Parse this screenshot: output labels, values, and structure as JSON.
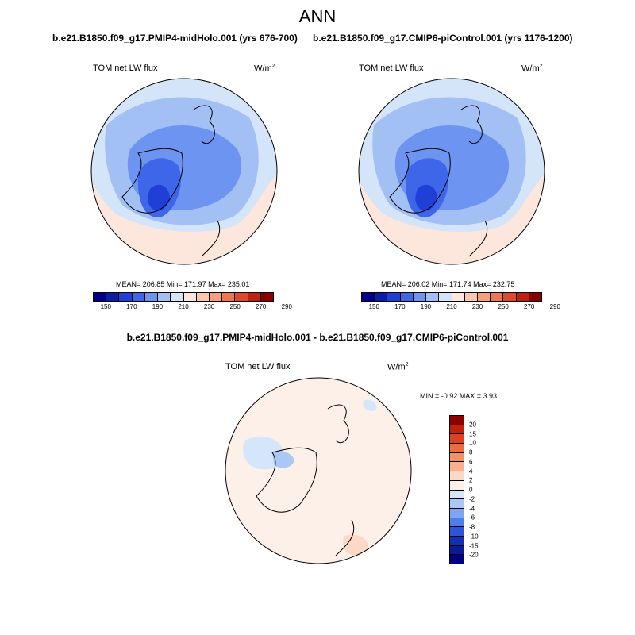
{
  "title": "ANN",
  "panels": {
    "left": {
      "run_title": "b.e21.B1850.f09_g17.PMIP4-midHolo.001 (yrs 676-700)",
      "variable": "TOM net LW flux",
      "units": "W/m",
      "units_exp": "2",
      "stats": "MEAN= 206.85   Min= 171.97   Max= 235.01",
      "mean": 206.85,
      "min": 171.97,
      "max": 235.01
    },
    "right": {
      "run_title": "b.e21.B1850.f09_g17.CMIP6-piControl.001 (yrs 1176-1200)",
      "variable": "TOM net LW flux",
      "units": "W/m",
      "units_exp": "2",
      "stats": "MEAN= 206.02   Min= 171.74   Max= 232.75",
      "mean": 206.02,
      "min": 171.74,
      "max": 232.75
    },
    "diff": {
      "run_title": "b.e21.B1850.f09_g17.PMIP4-midHolo.001 - b.e21.B1850.f09_g17.CMIP6-piControl.001",
      "variable": "TOM net LW flux",
      "units": "W/m",
      "units_exp": "2",
      "stats": "MIN =  -0.92 MAX =   3.93",
      "min": -0.92,
      "max": 3.93
    }
  },
  "colorbar_abs": {
    "colors": [
      "#00008b",
      "#0a1ea6",
      "#1f3fd6",
      "#3e66e8",
      "#6d94f0",
      "#a3c0f5",
      "#d4e5fa",
      "#fde7dc",
      "#fbc6ad",
      "#f79f7c",
      "#f07650",
      "#e04a2a",
      "#c0210f",
      "#8b0000"
    ],
    "tick_labels": [
      "150",
      "170",
      "190",
      "210",
      "230",
      "250",
      "270",
      "290"
    ]
  },
  "colorbar_diff": {
    "colors": [
      "#8b0000",
      "#c0210f",
      "#e0401f",
      "#f06a40",
      "#f58f65",
      "#f8b08f",
      "#fcd8c6",
      "#fdf0e8",
      "#d6e6fa",
      "#aac8f5",
      "#7ea6f0",
      "#4f7ee8",
      "#2a55d9",
      "#1230b5",
      "#0a1a90",
      "#000080"
    ],
    "tick_labels": [
      "20",
      "15",
      "10",
      "8",
      "6",
      "4",
      "2",
      "0",
      "-2",
      "-4",
      "-6",
      "-8",
      "-10",
      "-15",
      "-20"
    ]
  }
}
